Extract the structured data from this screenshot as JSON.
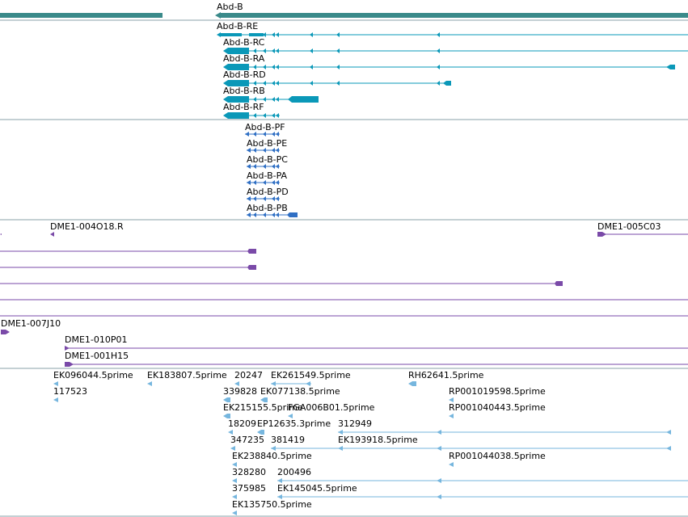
{
  "colors": {
    "gene": "#3a8a8a",
    "transcript": "#0a98b8",
    "protein": "#2f6fc4",
    "clone": "#7a4aa8",
    "est": "#76b6de",
    "separator": "#8aa0a8"
  },
  "gene": {
    "label": "Abd-B"
  },
  "transcripts": [
    "Abd-B-RE",
    "Abd-B-RC",
    "Abd-B-RA",
    "Abd-B-RD",
    "Abd-B-RB",
    "Abd-B-RF"
  ],
  "proteins": [
    "Abd-B-PF",
    "Abd-B-PE",
    "Abd-B-PC",
    "Abd-B-PA",
    "Abd-B-PD",
    "Abd-B-PB"
  ],
  "clones": {
    "c1": "DME1-004O18.R",
    "c2": "DME1-005C03",
    "c3": "DME1-007J10",
    "c4": "DME1-010P01",
    "c5": "DME1-001H15"
  },
  "ests": [
    "EK096044.5prime",
    "EK183807.5prime",
    "20247",
    "EK261549.5prime",
    "RH62641.5prime",
    "117523",
    "339828",
    "EK077138.5prime",
    "RP001019598.5prime",
    "EK215155.5prime",
    "FGA006B01.5prime",
    "RP001040443.5prime",
    "18209",
    "EP12635.3prime",
    "312949",
    "347235",
    "381419",
    "EK193918.5prime",
    "EK238840.5prime",
    "RP001044038.5prime",
    "328280",
    "200496",
    "375985",
    "EK145045.5prime",
    "EK135750.5prime"
  ]
}
